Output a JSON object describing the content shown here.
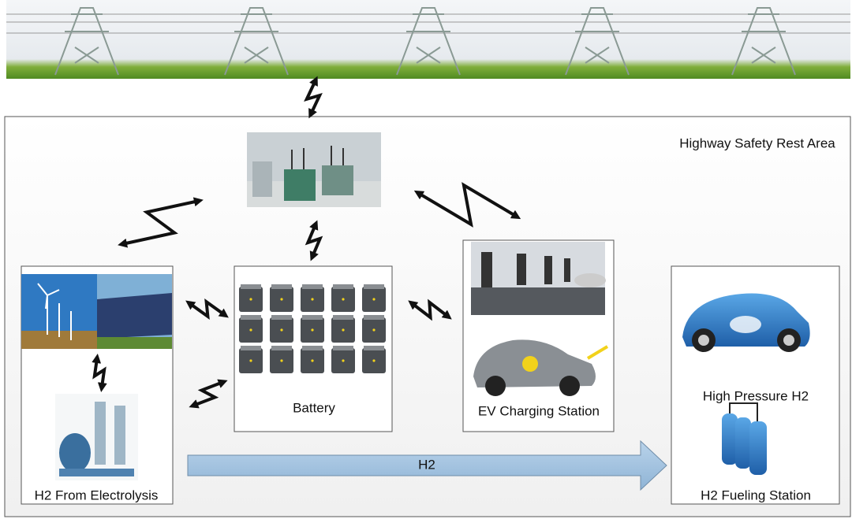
{
  "area": {
    "label": "Highway Safety Rest Area"
  },
  "nodes": [
    {
      "label": "H2 From Electrolysis"
    },
    {
      "label": "Battery"
    },
    {
      "label": "EV Charging Station"
    },
    {
      "label": "High Pressure H2"
    },
    {
      "label": "H2 Fueling Station"
    }
  ],
  "flow": {
    "label": "H2"
  }
}
